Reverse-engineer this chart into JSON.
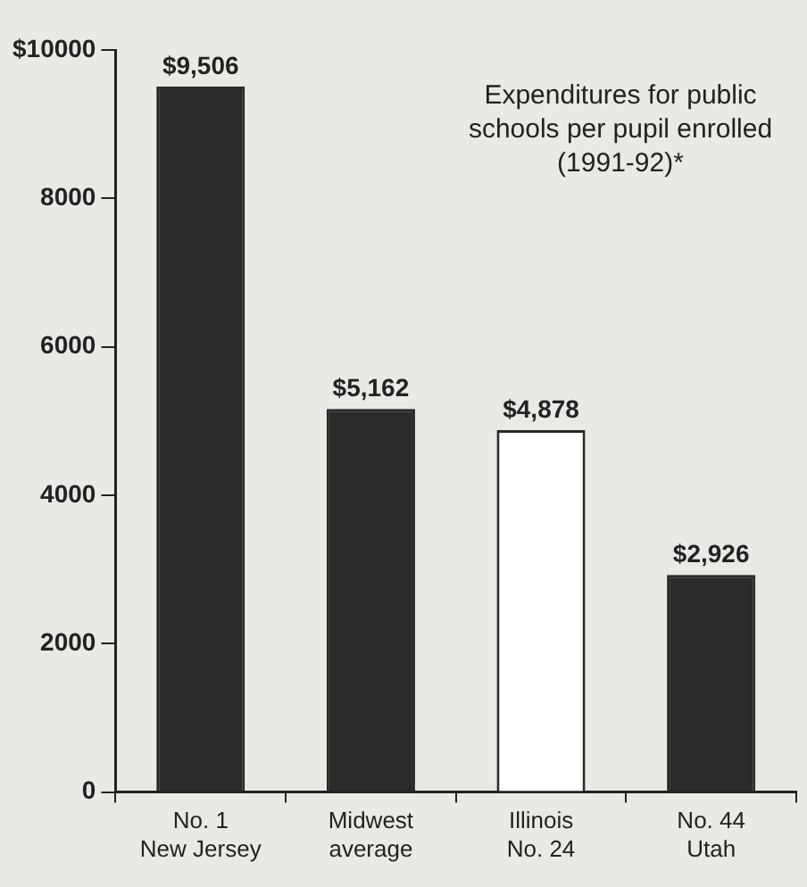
{
  "chart_data": {
    "type": "bar",
    "title": "Expenditures for public schools per pupil enrolled (1991-92)*",
    "categories": [
      "No. 1\nNew Jersey",
      "Midwest\naverage",
      "Illinois\nNo. 24",
      "No. 44\nUtah"
    ],
    "values": [
      9506,
      5162,
      4878,
      2926
    ],
    "colors": [
      "#2a2a2a",
      "#2a2a2a",
      "#ffffff",
      "#2a2a2a"
    ],
    "value_labels": [
      "$9,506",
      "$5,162",
      "$4,878",
      "$2,926"
    ],
    "ylim": [
      0,
      10000
    ],
    "yticks": [
      0,
      2000,
      4000,
      6000,
      8000,
      {
        "value": 10000,
        "label": "$10000"
      }
    ],
    "grid": false,
    "legend": false
  }
}
